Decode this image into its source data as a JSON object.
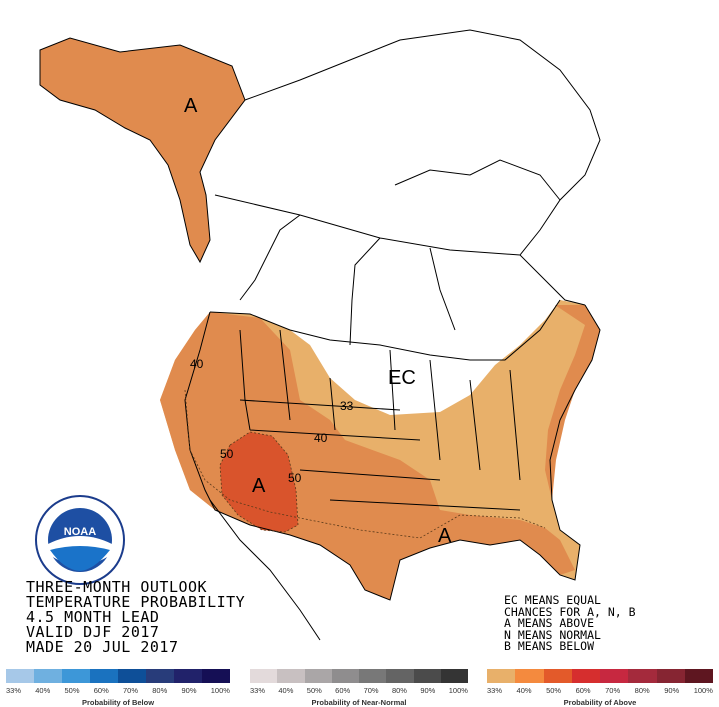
{
  "title_lines": [
    "THREE-MONTH OUTLOOK",
    "TEMPERATURE PROBABILITY",
    "4.5 MONTH LEAD",
    "VALID DJF 2017",
    "MADE 20 JUL 2017"
  ],
  "legend_lines": [
    "EC MEANS EQUAL",
    "CHANCES FOR A, N, B",
    "A MEANS ABOVE",
    "N MEANS NORMAL",
    "B MEANS BELOW"
  ],
  "map_labels": {
    "alaska": "A",
    "southwest": "A",
    "gulf": "A",
    "ec": "EC",
    "contour_33": "33",
    "contour_40_west": "40",
    "contour_40_co": "40",
    "contour_50_w": "50",
    "contour_50_e": "50"
  },
  "logo": {
    "text": "NOAA"
  },
  "scales": [
    {
      "caption": "Probability of Below",
      "ticks": [
        "33%",
        "40%",
        "50%",
        "60%",
        "70%",
        "80%",
        "90%",
        "100%"
      ],
      "colors": [
        "#a6c8e8",
        "#6fb0e0",
        "#3d97d8",
        "#1a72bf",
        "#0e4f98",
        "#283c7a",
        "#21226a",
        "#150f55"
      ]
    },
    {
      "caption": "Probability of Near-Normal",
      "ticks": [
        "33%",
        "40%",
        "50%",
        "60%",
        "70%",
        "80%",
        "90%",
        "100%"
      ],
      "colors": [
        "#e3dadb",
        "#c8c0c1",
        "#aaa6a7",
        "#8f8d8e",
        "#787878",
        "#646464",
        "#4b4b4b",
        "#343434"
      ]
    },
    {
      "caption": "Probability of Above",
      "ticks": [
        "33%",
        "40%",
        "50%",
        "60%",
        "70%",
        "80%",
        "90%",
        "100%"
      ],
      "colors": [
        "#e8b06a",
        "#f48a3e",
        "#e35a2a",
        "#d62e2e",
        "#c72840",
        "#a42a3c",
        "#862532",
        "#5e1620"
      ]
    }
  ],
  "colors": {
    "above_33": "#e8b06a",
    "above_40": "#e08b4e",
    "above_50": "#d9542c",
    "outline": "#000000"
  }
}
